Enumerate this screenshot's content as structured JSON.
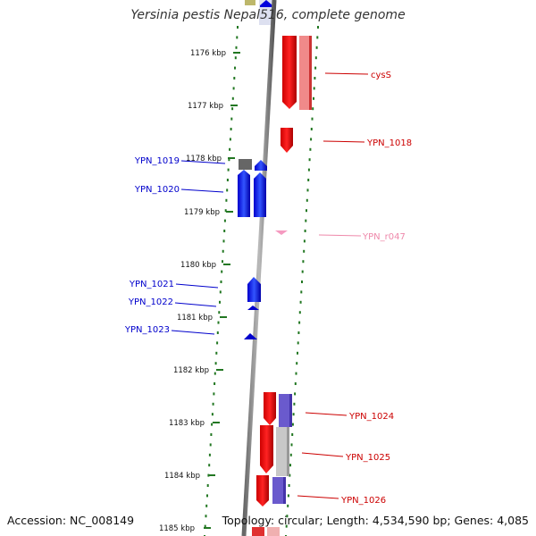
{
  "title": "Yersinia pestis Nepal516, complete genome",
  "footer": {
    "accession": "Accession: NC_008149",
    "topology": "Topology: circular; Length: 4,534,590 bp; Genes: 4,085"
  },
  "ticks": [
    {
      "label": "1176 kbp"
    },
    {
      "label": "1177 kbp"
    },
    {
      "label": "1178 kbp"
    },
    {
      "label": "1179 kbp"
    },
    {
      "label": "1180 kbp"
    },
    {
      "label": "1181 kbp"
    },
    {
      "label": "1182 kbp"
    },
    {
      "label": "1183 kbp"
    },
    {
      "label": "1184 kbp"
    },
    {
      "label": "1185 kbp"
    }
  ],
  "genes": [
    {
      "label": "cysS",
      "strand": "forward",
      "color": "#dd0000"
    },
    {
      "label": "YPN_1018",
      "strand": "forward",
      "color": "#dd0000"
    },
    {
      "label": "YPN_r047",
      "strand": "forward",
      "color": "#ee88aa"
    },
    {
      "label": "YPN_1019",
      "strand": "reverse",
      "color": "#0000cc"
    },
    {
      "label": "YPN_1020",
      "strand": "reverse",
      "color": "#0000cc"
    },
    {
      "label": "YPN_1021",
      "strand": "reverse",
      "color": "#0000cc"
    },
    {
      "label": "YPN_1022",
      "strand": "reverse",
      "color": "#0000cc"
    },
    {
      "label": "YPN_1023",
      "strand": "reverse",
      "color": "#0000cc"
    },
    {
      "label": "YPN_1024",
      "strand": "forward",
      "color": "#dd0000"
    },
    {
      "label": "YPN_1025",
      "strand": "forward",
      "color": "#dd0000"
    },
    {
      "label": "YPN_1026",
      "strand": "forward",
      "color": "#dd0000"
    }
  ],
  "colors": {
    "forward": "#dd0000",
    "reverse": "#0000cc",
    "rna": "#ee88aa",
    "dots": "#227722",
    "backbone": "#888888"
  }
}
